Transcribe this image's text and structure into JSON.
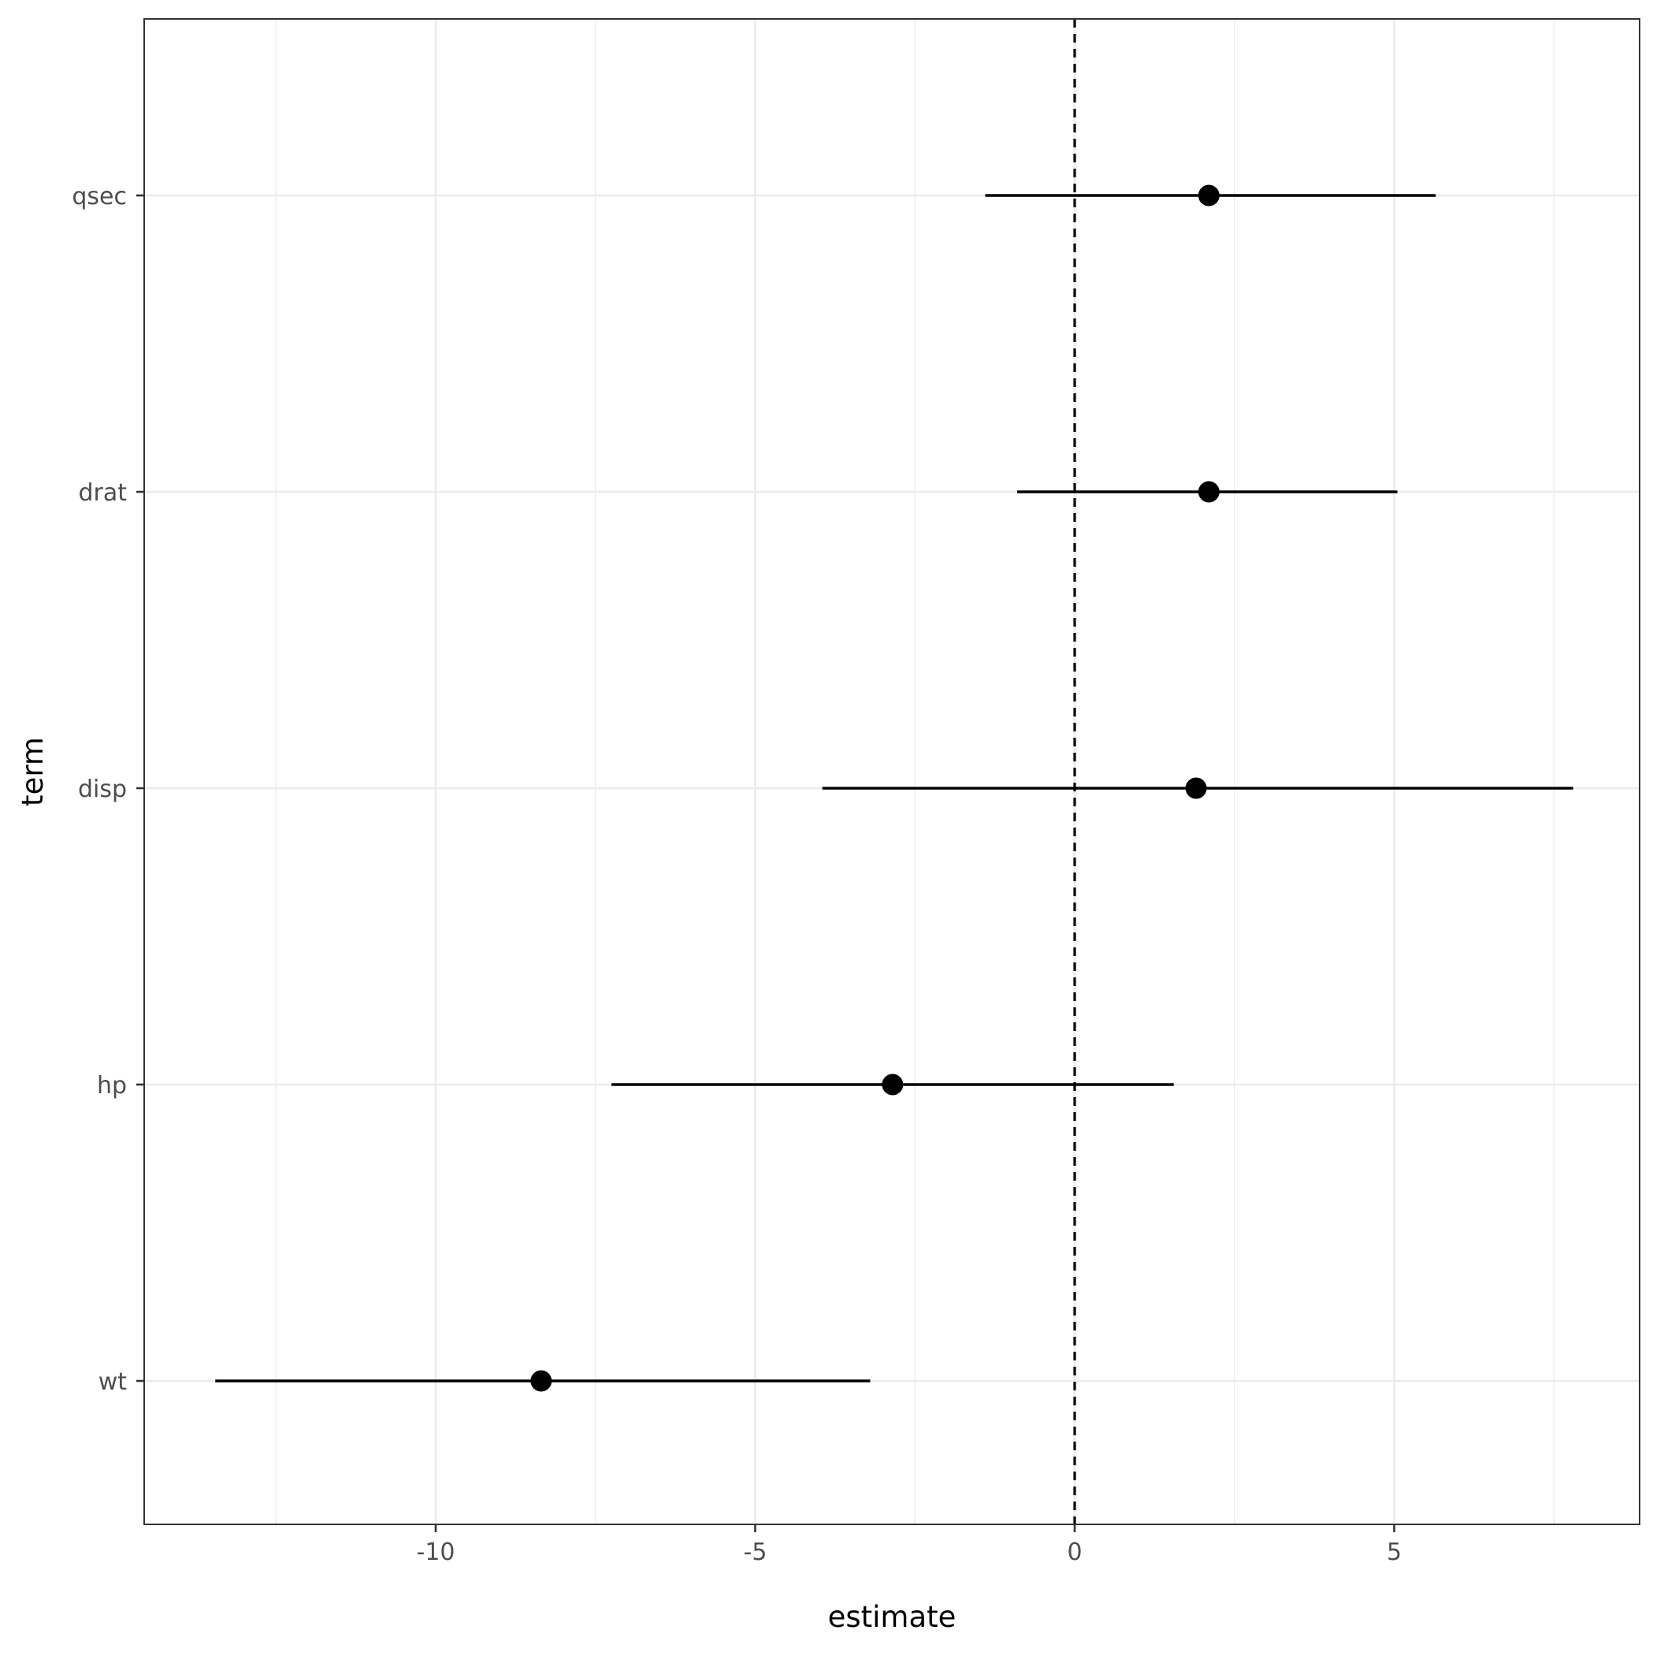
{
  "chart_data": {
    "type": "scatter",
    "subtype": "coefficient-plot",
    "title": "",
    "xlabel": "estimate",
    "ylabel": "term",
    "x_ticks": [
      -10,
      -5,
      0,
      5
    ],
    "x_tick_labels": [
      "-10",
      "-5",
      "0",
      "5"
    ],
    "xlim": [
      -14.55,
      8.85
    ],
    "grid": true,
    "reference_line": {
      "x": 0,
      "style": "dashed"
    },
    "colors": {
      "point": "#000000",
      "interval": "#000000",
      "grid": "#ebebeb",
      "panel_border": "#333333"
    },
    "terms": [
      "wt",
      "hp",
      "disp",
      "drat",
      "qsec"
    ],
    "points": [
      {
        "term": "wt",
        "estimate": -8.35,
        "conf_low": -13.45,
        "conf_high": -3.2
      },
      {
        "term": "hp",
        "estimate": -2.85,
        "conf_low": -7.25,
        "conf_high": 1.55
      },
      {
        "term": "disp",
        "estimate": 1.9,
        "conf_low": -3.95,
        "conf_high": 7.8
      },
      {
        "term": "drat",
        "estimate": 2.1,
        "conf_low": -0.9,
        "conf_high": 5.05
      },
      {
        "term": "qsec",
        "estimate": 2.1,
        "conf_low": -1.4,
        "conf_high": 5.65
      }
    ]
  }
}
